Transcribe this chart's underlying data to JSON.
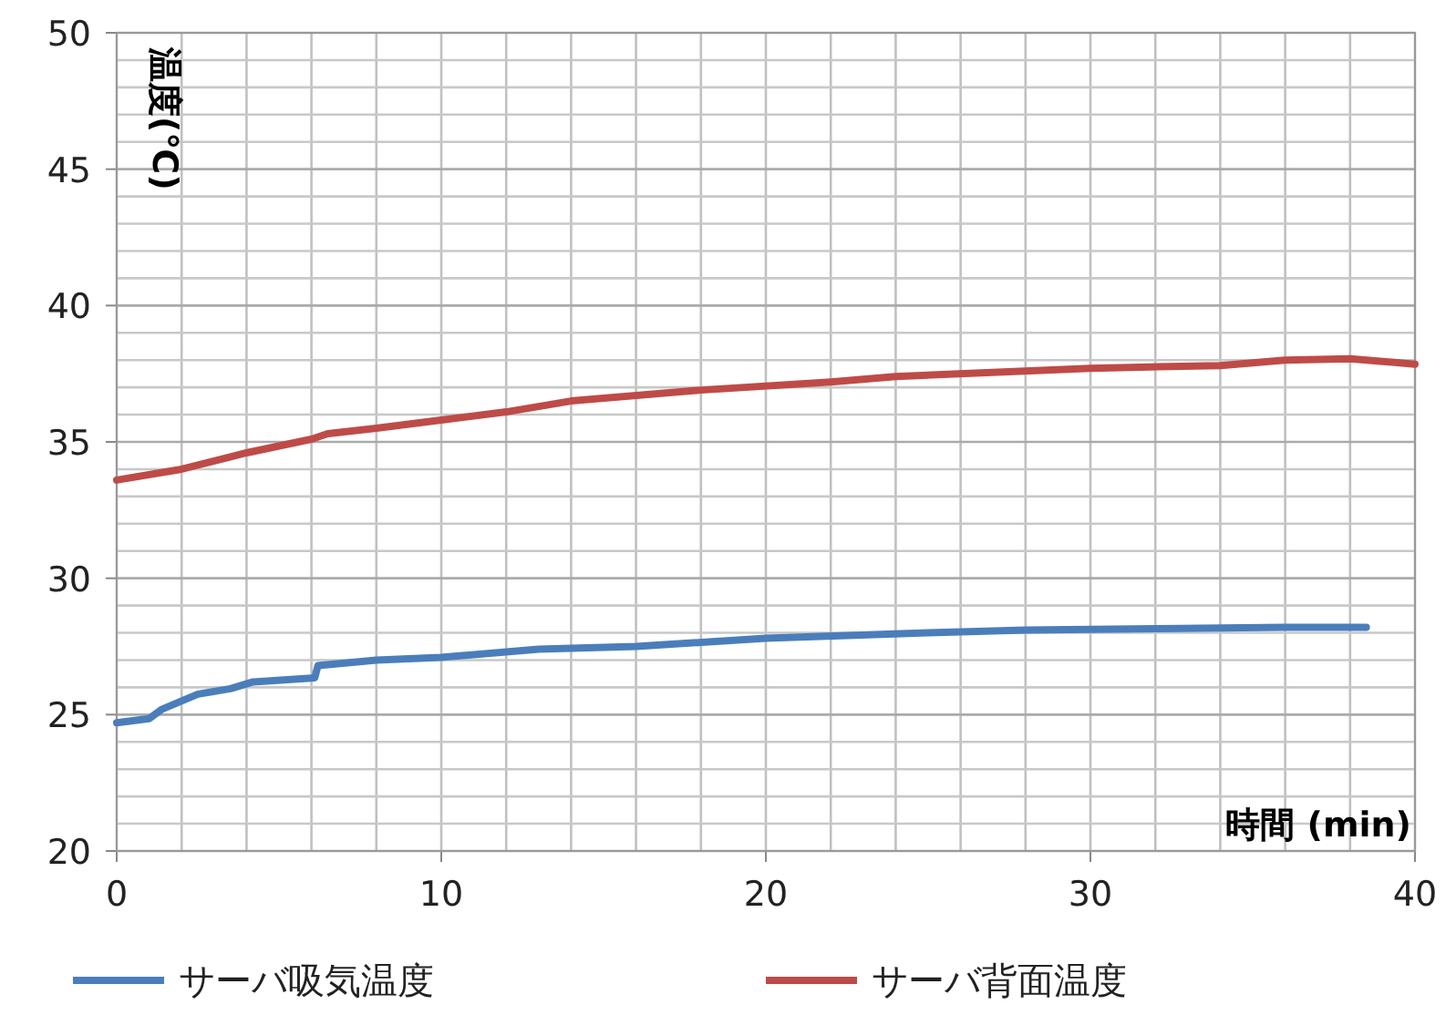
{
  "chart_data": {
    "type": "line",
    "xlabel": "時間 (min)",
    "ylabel": "温度(℃)",
    "xlim": [
      0,
      40
    ],
    "ylim": [
      20,
      50
    ],
    "xticks": [
      0,
      {
        "value": 2,
        "label": null
      },
      {
        "value": 4,
        "label": null
      },
      {
        "value": 6,
        "label": null
      },
      {
        "value": 8,
        "label": null
      },
      10,
      {
        "value": 12,
        "label": null
      },
      {
        "value": 14,
        "label": null
      },
      {
        "value": 16,
        "label": null
      },
      {
        "value": 18,
        "label": null
      },
      20,
      {
        "value": 22,
        "label": null
      },
      {
        "value": 24,
        "label": null
      },
      {
        "value": 26,
        "label": null
      },
      {
        "value": 28,
        "label": null
      },
      30,
      {
        "value": 32,
        "label": null
      },
      {
        "value": 34,
        "label": null
      },
      {
        "value": 36,
        "label": null
      },
      {
        "value": 38,
        "label": null
      },
      40
    ],
    "yticks": [
      20,
      {
        "value": 21,
        "label": null
      },
      {
        "value": 22,
        "label": null
      },
      {
        "value": 23,
        "label": null
      },
      {
        "value": 24,
        "label": null
      },
      25,
      {
        "value": 26,
        "label": null
      },
      {
        "value": 27,
        "label": null
      },
      {
        "value": 28,
        "label": null
      },
      {
        "value": 29,
        "label": null
      },
      30,
      {
        "value": 31,
        "label": null
      },
      {
        "value": 32,
        "label": null
      },
      {
        "value": 33,
        "label": null
      },
      {
        "value": 34,
        "label": null
      },
      35,
      {
        "value": 36,
        "label": null
      },
      {
        "value": 37,
        "label": null
      },
      {
        "value": 38,
        "label": null
      },
      {
        "value": 39,
        "label": null
      },
      40,
      {
        "value": 41,
        "label": null
      },
      {
        "value": 42,
        "label": null
      },
      {
        "value": 43,
        "label": null
      },
      {
        "value": 44,
        "label": null
      },
      45,
      {
        "value": 46,
        "label": null
      },
      {
        "value": 47,
        "label": null
      },
      {
        "value": 48,
        "label": null
      },
      {
        "value": 49,
        "label": null
      },
      50
    ],
    "grid": true,
    "legend": "bottom",
    "series": [
      {
        "name": "サーバ吸気温度",
        "color": "#4a7ebb",
        "x": [
          0,
          1.0,
          1.4,
          2.5,
          3.5,
          4.2,
          6.1,
          6.2,
          8,
          10,
          13,
          16,
          20,
          25,
          28,
          32,
          36,
          38.5
        ],
        "values": [
          24.7,
          24.85,
          25.2,
          25.75,
          25.95,
          26.2,
          26.35,
          26.8,
          27.0,
          27.1,
          27.4,
          27.5,
          27.8,
          28.0,
          28.1,
          28.15,
          28.2,
          28.2
        ]
      },
      {
        "name": "サーバ背面温度",
        "color": "#be4b48",
        "x": [
          0,
          2,
          4,
          6,
          6.5,
          8,
          10,
          12,
          14,
          18,
          22,
          24,
          30,
          34,
          36,
          38,
          40
        ],
        "values": [
          33.6,
          34.0,
          34.6,
          35.1,
          35.3,
          35.5,
          35.8,
          36.1,
          36.5,
          36.9,
          37.2,
          37.4,
          37.7,
          37.8,
          38.0,
          38.05,
          37.85
        ]
      }
    ]
  }
}
